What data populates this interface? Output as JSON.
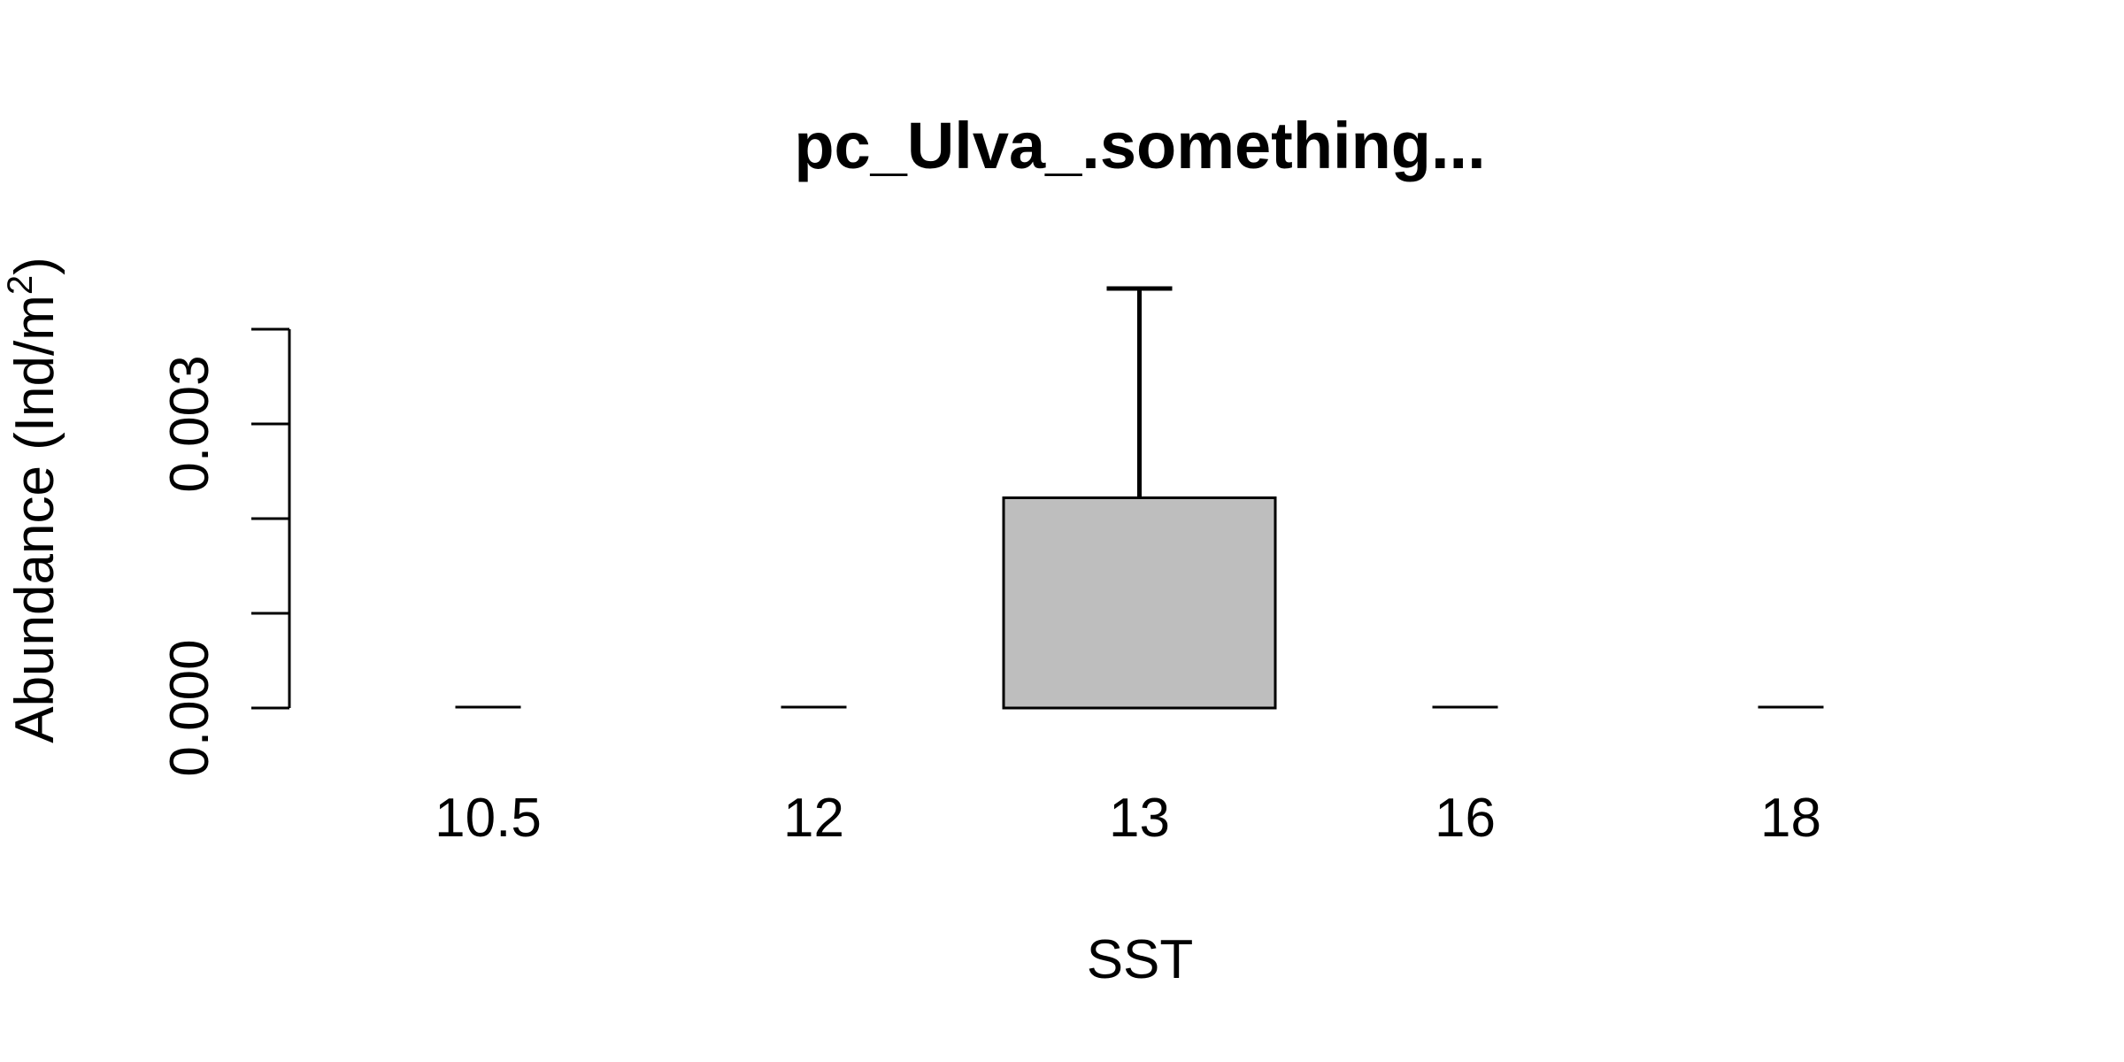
{
  "chart_data": {
    "type": "bar",
    "title": "pc_Ulva_.something...",
    "xlabel": "SST",
    "ylabel_main": "Abundance (Ind/m",
    "ylabel_sup": "2",
    "ylabel_close": ")",
    "categories": [
      "10.5",
      "12",
      "13",
      "16",
      "18"
    ],
    "values": [
      0,
      0,
      0.00222,
      0,
      0
    ],
    "error_upper": [
      0,
      0,
      0.00443,
      0,
      0
    ],
    "bar_color": "#bebebe",
    "yticks": [
      0,
      0.001,
      0.002,
      0.003,
      0.004
    ],
    "ytick_labels": [
      "0.000",
      "",
      "",
      "0.003",
      ""
    ],
    "ylim": [
      0,
      0.004
    ],
    "grid": false,
    "legend": "none"
  }
}
